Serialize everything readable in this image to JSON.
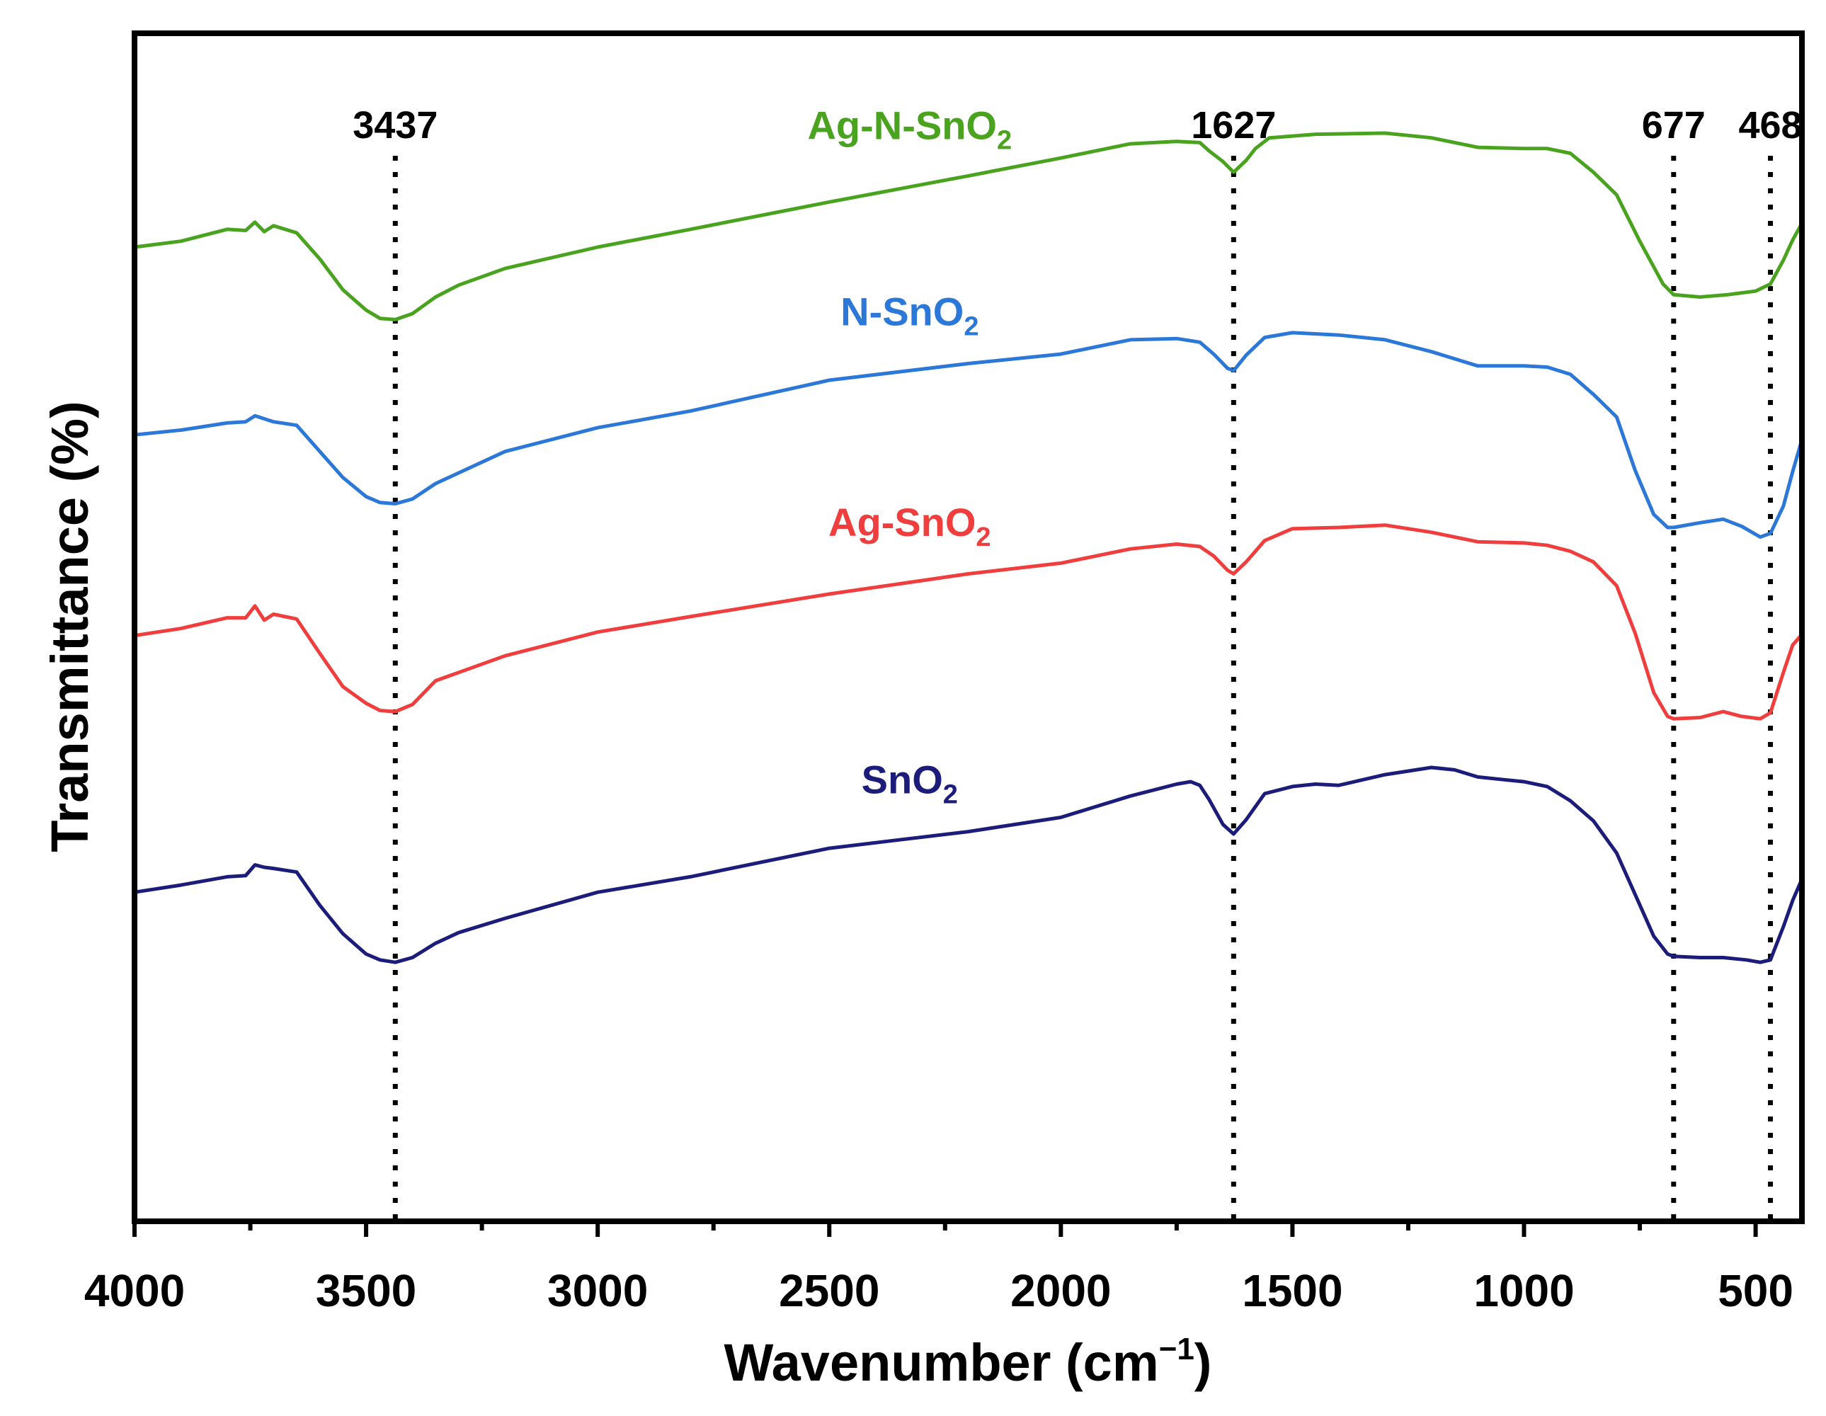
{
  "chart_data": {
    "type": "line",
    "title": "",
    "xlabel": "Wavenumber (cm",
    "xlabel_sup": "−1",
    "xlabel_close": ")",
    "ylabel": "Transmittance (%)",
    "xlim": [
      4000,
      400
    ],
    "x_reversed": true,
    "ylim": [
      0,
      100
    ],
    "y_ticks_shown": false,
    "grid": false,
    "x_ticks": [
      4000,
      3500,
      3000,
      2500,
      2000,
      1500,
      1000,
      500
    ],
    "x_tick_labels": [
      "4000",
      "3500",
      "3000",
      "2500",
      "2000",
      "1500",
      "1000",
      "500"
    ],
    "peak_markers": [
      {
        "x": 3437,
        "label": "3437"
      },
      {
        "x": 1627,
        "label": "1627"
      },
      {
        "x": 677,
        "label": "677"
      },
      {
        "x": 468,
        "label": "468"
      }
    ],
    "series": [
      {
        "name": "Ag-N-SnO2",
        "label_main": "Ag-N-SnO",
        "label_sub": "2",
        "color": "#4aa31f",
        "points": [
          [
            4000,
            82.0
          ],
          [
            3900,
            82.5
          ],
          [
            3800,
            83.5
          ],
          [
            3760,
            83.4
          ],
          [
            3740,
            84.1
          ],
          [
            3720,
            83.3
          ],
          [
            3700,
            83.8
          ],
          [
            3650,
            83.2
          ],
          [
            3600,
            81.0
          ],
          [
            3550,
            78.4
          ],
          [
            3500,
            76.7
          ],
          [
            3470,
            76.0
          ],
          [
            3437,
            75.9
          ],
          [
            3400,
            76.4
          ],
          [
            3350,
            77.8
          ],
          [
            3300,
            78.8
          ],
          [
            3200,
            80.2
          ],
          [
            3000,
            82.0
          ],
          [
            2800,
            83.5
          ],
          [
            2500,
            85.8
          ],
          [
            2200,
            88.0
          ],
          [
            2000,
            89.5
          ],
          [
            1850,
            90.7
          ],
          [
            1750,
            90.9
          ],
          [
            1700,
            90.8
          ],
          [
            1680,
            90.1
          ],
          [
            1650,
            89.2
          ],
          [
            1627,
            88.3
          ],
          [
            1600,
            89.3
          ],
          [
            1580,
            90.3
          ],
          [
            1550,
            91.2
          ],
          [
            1450,
            91.5
          ],
          [
            1300,
            91.6
          ],
          [
            1200,
            91.2
          ],
          [
            1100,
            90.4
          ],
          [
            1000,
            90.3
          ],
          [
            950,
            90.3
          ],
          [
            900,
            89.9
          ],
          [
            850,
            88.3
          ],
          [
            800,
            86.4
          ],
          [
            750,
            82.5
          ],
          [
            700,
            78.9
          ],
          [
            677,
            78.0
          ],
          [
            620,
            77.8
          ],
          [
            560,
            78.0
          ],
          [
            500,
            78.3
          ],
          [
            468,
            78.9
          ],
          [
            440,
            80.9
          ],
          [
            420,
            82.6
          ],
          [
            400,
            84.0
          ]
        ]
      },
      {
        "name": "N-SnO2",
        "label_main": "N-SnO",
        "label_sub": "2",
        "color": "#2b78d9",
        "points": [
          [
            4000,
            66.2
          ],
          [
            3900,
            66.6
          ],
          [
            3800,
            67.2
          ],
          [
            3760,
            67.3
          ],
          [
            3740,
            67.8
          ],
          [
            3700,
            67.3
          ],
          [
            3650,
            67.0
          ],
          [
            3600,
            64.8
          ],
          [
            3550,
            62.6
          ],
          [
            3500,
            61.0
          ],
          [
            3470,
            60.5
          ],
          [
            3437,
            60.4
          ],
          [
            3400,
            60.8
          ],
          [
            3350,
            62.1
          ],
          [
            3300,
            63.0
          ],
          [
            3200,
            64.8
          ],
          [
            3000,
            66.8
          ],
          [
            2800,
            68.2
          ],
          [
            2500,
            70.8
          ],
          [
            2200,
            72.2
          ],
          [
            2000,
            73.0
          ],
          [
            1850,
            74.2
          ],
          [
            1750,
            74.3
          ],
          [
            1700,
            74.0
          ],
          [
            1670,
            73.0
          ],
          [
            1640,
            71.8
          ],
          [
            1627,
            71.6
          ],
          [
            1600,
            72.9
          ],
          [
            1560,
            74.4
          ],
          [
            1500,
            74.8
          ],
          [
            1400,
            74.6
          ],
          [
            1300,
            74.2
          ],
          [
            1200,
            73.2
          ],
          [
            1100,
            72.0
          ],
          [
            1000,
            72.0
          ],
          [
            950,
            71.9
          ],
          [
            900,
            71.3
          ],
          [
            850,
            69.6
          ],
          [
            800,
            67.7
          ],
          [
            760,
            63.2
          ],
          [
            720,
            59.5
          ],
          [
            690,
            58.4
          ],
          [
            677,
            58.4
          ],
          [
            620,
            58.8
          ],
          [
            570,
            59.1
          ],
          [
            530,
            58.5
          ],
          [
            490,
            57.6
          ],
          [
            468,
            57.9
          ],
          [
            440,
            60.2
          ],
          [
            420,
            63.1
          ],
          [
            400,
            65.8
          ]
        ]
      },
      {
        "name": "Ag-SnO2",
        "label_main": "Ag-SnO",
        "label_sub": "2",
        "color": "#f03e3e",
        "points": [
          [
            4000,
            49.3
          ],
          [
            3900,
            49.9
          ],
          [
            3800,
            50.8
          ],
          [
            3760,
            50.8
          ],
          [
            3740,
            51.8
          ],
          [
            3720,
            50.6
          ],
          [
            3700,
            51.1
          ],
          [
            3650,
            50.7
          ],
          [
            3600,
            47.8
          ],
          [
            3550,
            45.0
          ],
          [
            3500,
            43.6
          ],
          [
            3470,
            43.0
          ],
          [
            3437,
            42.9
          ],
          [
            3400,
            43.5
          ],
          [
            3350,
            45.5
          ],
          [
            3300,
            46.2
          ],
          [
            3200,
            47.6
          ],
          [
            3000,
            49.6
          ],
          [
            2800,
            50.9
          ],
          [
            2500,
            52.8
          ],
          [
            2200,
            54.5
          ],
          [
            2000,
            55.4
          ],
          [
            1850,
            56.6
          ],
          [
            1750,
            57.0
          ],
          [
            1700,
            56.8
          ],
          [
            1670,
            56.0
          ],
          [
            1640,
            54.8
          ],
          [
            1627,
            54.5
          ],
          [
            1600,
            55.5
          ],
          [
            1560,
            57.3
          ],
          [
            1500,
            58.3
          ],
          [
            1400,
            58.4
          ],
          [
            1300,
            58.6
          ],
          [
            1200,
            58.0
          ],
          [
            1100,
            57.2
          ],
          [
            1000,
            57.1
          ],
          [
            950,
            56.9
          ],
          [
            900,
            56.4
          ],
          [
            850,
            55.5
          ],
          [
            800,
            53.5
          ],
          [
            760,
            49.5
          ],
          [
            720,
            44.5
          ],
          [
            690,
            42.5
          ],
          [
            677,
            42.3
          ],
          [
            620,
            42.4
          ],
          [
            570,
            42.9
          ],
          [
            530,
            42.5
          ],
          [
            490,
            42.3
          ],
          [
            468,
            42.8
          ],
          [
            440,
            46.2
          ],
          [
            420,
            48.5
          ],
          [
            400,
            49.4
          ]
        ]
      },
      {
        "name": "SnO2",
        "label_main": "SnO",
        "label_sub": "2",
        "color": "#1c1c7a",
        "points": [
          [
            4000,
            27.7
          ],
          [
            3900,
            28.3
          ],
          [
            3800,
            29.0
          ],
          [
            3760,
            29.1
          ],
          [
            3740,
            30.0
          ],
          [
            3720,
            29.8
          ],
          [
            3700,
            29.7
          ],
          [
            3650,
            29.4
          ],
          [
            3600,
            26.6
          ],
          [
            3550,
            24.2
          ],
          [
            3500,
            22.5
          ],
          [
            3470,
            22.0
          ],
          [
            3437,
            21.8
          ],
          [
            3400,
            22.2
          ],
          [
            3350,
            23.4
          ],
          [
            3300,
            24.3
          ],
          [
            3200,
            25.5
          ],
          [
            3000,
            27.7
          ],
          [
            2800,
            29.0
          ],
          [
            2500,
            31.4
          ],
          [
            2200,
            32.8
          ],
          [
            2000,
            34.0
          ],
          [
            1850,
            35.8
          ],
          [
            1750,
            36.8
          ],
          [
            1720,
            37.0
          ],
          [
            1700,
            36.7
          ],
          [
            1680,
            35.5
          ],
          [
            1650,
            33.4
          ],
          [
            1627,
            32.6
          ],
          [
            1600,
            33.8
          ],
          [
            1560,
            36.0
          ],
          [
            1500,
            36.6
          ],
          [
            1450,
            36.8
          ],
          [
            1400,
            36.7
          ],
          [
            1300,
            37.6
          ],
          [
            1200,
            38.2
          ],
          [
            1150,
            38.0
          ],
          [
            1100,
            37.4
          ],
          [
            1050,
            37.2
          ],
          [
            1000,
            37.0
          ],
          [
            950,
            36.6
          ],
          [
            900,
            35.4
          ],
          [
            850,
            33.7
          ],
          [
            800,
            31.0
          ],
          [
            760,
            27.5
          ],
          [
            720,
            24.0
          ],
          [
            690,
            22.5
          ],
          [
            677,
            22.3
          ],
          [
            620,
            22.2
          ],
          [
            570,
            22.2
          ],
          [
            520,
            22.0
          ],
          [
            490,
            21.8
          ],
          [
            468,
            22.0
          ],
          [
            440,
            24.8
          ],
          [
            420,
            27.0
          ],
          [
            400,
            28.8
          ]
        ]
      }
    ]
  }
}
